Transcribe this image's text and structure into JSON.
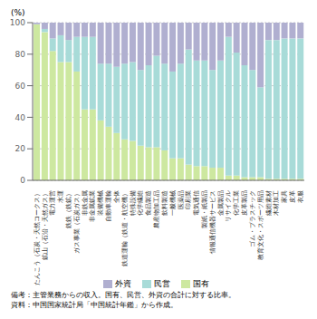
{
  "chart_data": {
    "type": "bar",
    "title": "(%)",
    "categories": [
      "たんこう（石炭・天然コークス）",
      "鉱山（石沿・天然ガス）",
      "電力運営",
      "水運",
      "鉄鉄（鉄鉱）",
      "ガス事業（石炭ガス）",
      "非鉄金属",
      "非金属鉱業",
      "装備機械",
      "自動車運輸",
      "全体",
      "鉄道運輸（鉄道・航空機）",
      "特殊設備",
      "化学繊維",
      "食品製造",
      "農産物加工品",
      "飲料製造",
      "一般機械",
      "医薬品",
      "印刷業",
      "電気通信",
      "製紙・紙製品",
      "情報通信機器サービス",
      "金属製品",
      "リサイクル",
      "化学工業",
      "皮革製品",
      "ゴム・プラスチック",
      "教育文化・スポーツ用品",
      "繊維素材",
      "木材加工",
      "家具",
      "皮革",
      "衣服"
    ],
    "series": [
      {
        "name": "国有",
        "color": "#cde8a0",
        "values": [
          99,
          94,
          82,
          75,
          75,
          69,
          45,
          45,
          38,
          34,
          30,
          26,
          25,
          22,
          21,
          21,
          19,
          14,
          14,
          10,
          9,
          9,
          8,
          8,
          3,
          3,
          2,
          2,
          2,
          1,
          1,
          1,
          1,
          1
        ]
      },
      {
        "name": "民営",
        "color": "#a8dbd8",
        "values": [
          0,
          2,
          8,
          17,
          14,
          22,
          46,
          46,
          36,
          40,
          42,
          48,
          50,
          48,
          52,
          58,
          55,
          55,
          60,
          73,
          67,
          67,
          62,
          68,
          88,
          78,
          71,
          68,
          57,
          88,
          88,
          89,
          89,
          89
        ]
      },
      {
        "name": "外資",
        "color": "#b0afd0",
        "values": [
          1,
          4,
          10,
          8,
          11,
          9,
          9,
          9,
          26,
          26,
          28,
          26,
          25,
          30,
          27,
          21,
          26,
          31,
          26,
          17,
          24,
          24,
          30,
          24,
          9,
          19,
          27,
          30,
          41,
          11,
          11,
          10,
          10,
          10
        ]
      }
    ],
    "stacked": true,
    "ylim": [
      0,
      100
    ],
    "yticks": [
      0,
      20,
      40,
      60,
      80,
      100
    ],
    "grid": true,
    "legend": "bottom",
    "annotations": [
      "備考：主管業務からの収入。国有、民営、外資の合計に対する比率。",
      "資料：中国国家統計局「中国統計年鑑」から作成。"
    ]
  }
}
